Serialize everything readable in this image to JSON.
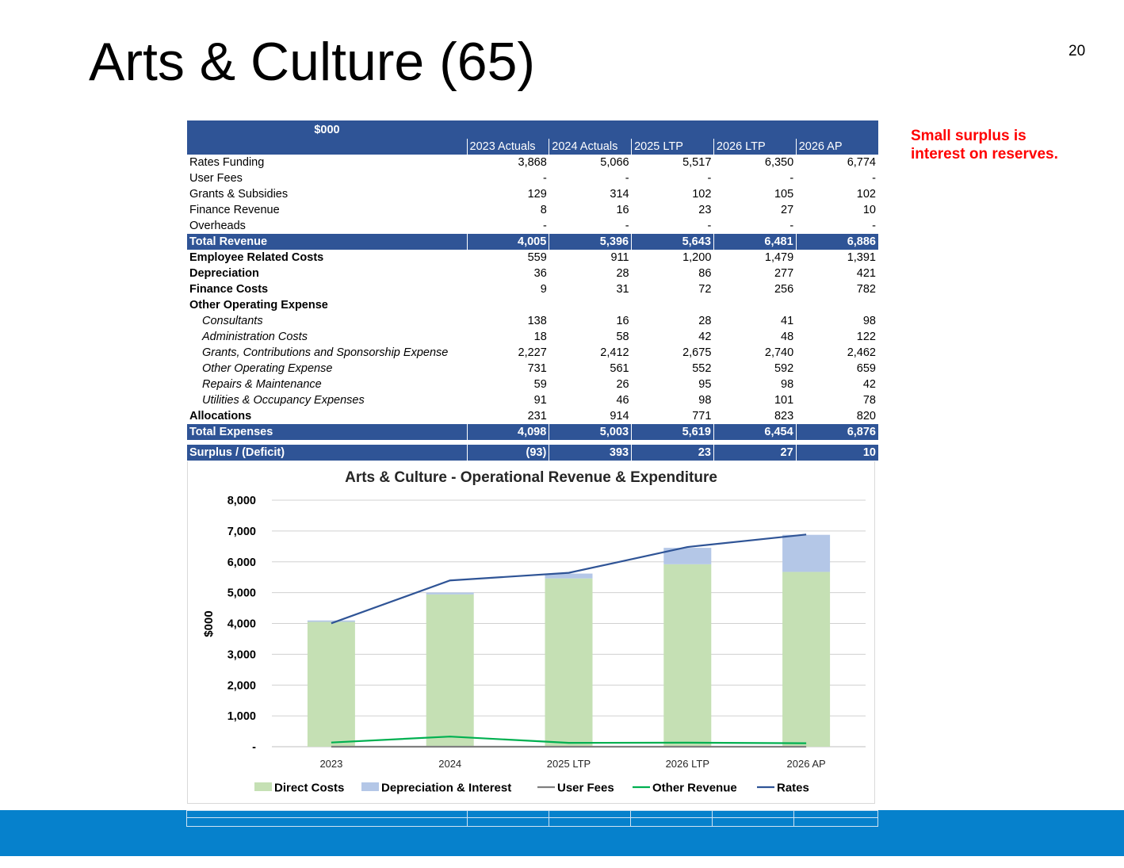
{
  "slide": {
    "title": "Arts & Culture (65)",
    "page_number": "20",
    "note": "Small surplus is interest on reserves."
  },
  "table": {
    "unit_label": "$000",
    "columns": [
      "2023 Actuals",
      "2024 Actuals",
      "2025 LTP",
      "2026 LTP",
      "2026 AP"
    ],
    "rows": [
      {
        "label": "Rates Funding",
        "style": "normal",
        "values": [
          "3,868",
          "5,066",
          "5,517",
          "6,350",
          "6,774"
        ]
      },
      {
        "label": "User Fees",
        "style": "normal",
        "values": [
          "-",
          "-",
          "-",
          "-",
          "-"
        ]
      },
      {
        "label": "Grants & Subsidies",
        "style": "normal",
        "values": [
          "129",
          "314",
          "102",
          "105",
          "102"
        ]
      },
      {
        "label": "Finance Revenue",
        "style": "normal",
        "values": [
          "8",
          "16",
          "23",
          "27",
          "10"
        ]
      },
      {
        "label": "Overheads",
        "style": "normal",
        "values": [
          "-",
          "-",
          "-",
          "-",
          "-"
        ]
      },
      {
        "label": "Total Revenue",
        "style": "total",
        "values": [
          "4,005",
          "5,396",
          "5,643",
          "6,481",
          "6,886"
        ]
      },
      {
        "label": "Employee Related Costs",
        "style": "bold",
        "values": [
          "559",
          "911",
          "1,200",
          "1,479",
          "1,391"
        ]
      },
      {
        "label": "Depreciation",
        "style": "bold",
        "values": [
          "36",
          "28",
          "86",
          "277",
          "421"
        ]
      },
      {
        "label": "Finance Costs",
        "style": "bold",
        "values": [
          "9",
          "31",
          "72",
          "256",
          "782"
        ]
      },
      {
        "label": "Other Operating  Expense",
        "style": "bold",
        "values": [
          "",
          "",
          "",
          "",
          ""
        ]
      },
      {
        "label": "Consultants",
        "style": "sub",
        "values": [
          "138",
          "16",
          "28",
          "41",
          "98"
        ]
      },
      {
        "label": "Administration Costs",
        "style": "sub",
        "values": [
          "18",
          "58",
          "42",
          "48",
          "122"
        ]
      },
      {
        "label": "Grants, Contributions and Sponsorship Expense",
        "style": "sub",
        "values": [
          "2,227",
          "2,412",
          "2,675",
          "2,740",
          "2,462"
        ]
      },
      {
        "label": "Other Operating Expense",
        "style": "sub",
        "values": [
          "731",
          "561",
          "552",
          "592",
          "659"
        ]
      },
      {
        "label": "Repairs & Maintenance",
        "style": "sub",
        "values": [
          "59",
          "26",
          "95",
          "98",
          "42"
        ]
      },
      {
        "label": "Utilities & Occupancy Expenses",
        "style": "sub",
        "values": [
          "91",
          "46",
          "98",
          "101",
          "78"
        ]
      },
      {
        "label": "Allocations",
        "style": "bold",
        "values": [
          "231",
          "914",
          "771",
          "823",
          "820"
        ]
      },
      {
        "label": "Total Expenses",
        "style": "total",
        "values": [
          "4,098",
          "5,003",
          "5,619",
          "6,454",
          "6,876"
        ]
      },
      {
        "label": "",
        "style": "gap",
        "values": [
          "",
          "",
          "",
          "",
          ""
        ]
      },
      {
        "label": "Surplus / (Deficit)",
        "style": "total",
        "values": [
          "(93)",
          "393",
          "23",
          "27",
          "10"
        ]
      }
    ]
  },
  "chart_data": {
    "type": "bar",
    "title": "Arts & Culture - Operational Revenue & Expenditure",
    "ylabel": "$000",
    "xlabel": "",
    "categories": [
      "2023",
      "2024",
      "2025 LTP",
      "2026 LTP",
      "2026 AP"
    ],
    "ylim": [
      0,
      8000
    ],
    "yticks": [
      0,
      1000,
      2000,
      3000,
      4000,
      5000,
      6000,
      7000,
      8000
    ],
    "ytick_labels": [
      "-",
      "1,000",
      "2,000",
      "3,000",
      "4,000",
      "5,000",
      "6,000",
      "7,000",
      "8,000"
    ],
    "stacked": true,
    "grid": true,
    "legend": "bottom",
    "series": [
      {
        "name": "Direct Costs",
        "kind": "bar",
        "color": "#c5e0b4",
        "values": [
          4053,
          4944,
          5461,
          5921,
          5673
        ]
      },
      {
        "name": "Depreciation & Interest",
        "kind": "bar",
        "color": "#b4c7e7",
        "values": [
          45,
          59,
          158,
          533,
          1203
        ]
      },
      {
        "name": "User Fees",
        "kind": "line",
        "color": "#7f7f7f",
        "values": [
          0,
          0,
          0,
          0,
          0
        ]
      },
      {
        "name": "Other Revenue",
        "kind": "line",
        "color": "#00b050",
        "values": [
          137,
          330,
          125,
          132,
          112
        ]
      },
      {
        "name": "Rates",
        "kind": "line",
        "color": "#2f5496",
        "values": [
          4005,
          5396,
          5643,
          6481,
          6886
        ]
      }
    ]
  },
  "colors": {
    "table_header": "#2f5496",
    "bottom_bar": "#0681cc",
    "note_text": "#ff0000"
  }
}
